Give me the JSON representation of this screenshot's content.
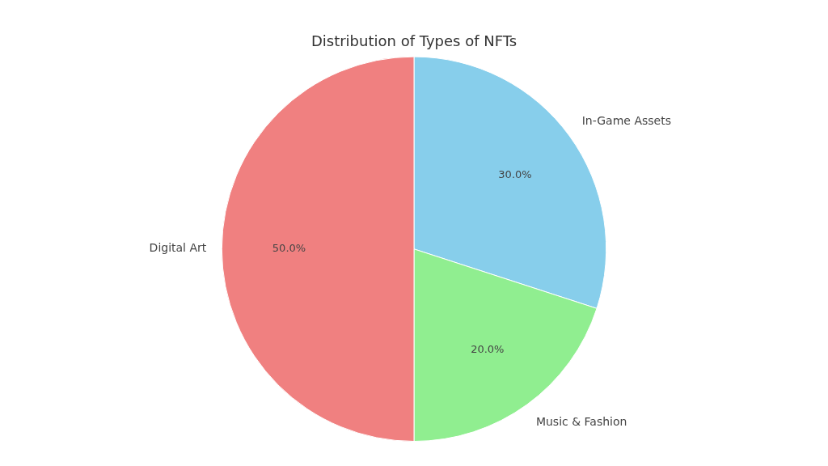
{
  "chart_data": {
    "type": "pie",
    "title": "Distribution of Types of NFTs",
    "categories": [
      "In-Game Assets",
      "Music & Fashion",
      "Digital Art"
    ],
    "values": [
      30.0,
      20.0,
      50.0
    ],
    "value_labels": [
      "30.0%",
      "20.0%",
      "50.0%"
    ],
    "colors": [
      "#87CEEB",
      "#90EE90",
      "#F08080"
    ],
    "data_labels": true,
    "legend": false
  }
}
